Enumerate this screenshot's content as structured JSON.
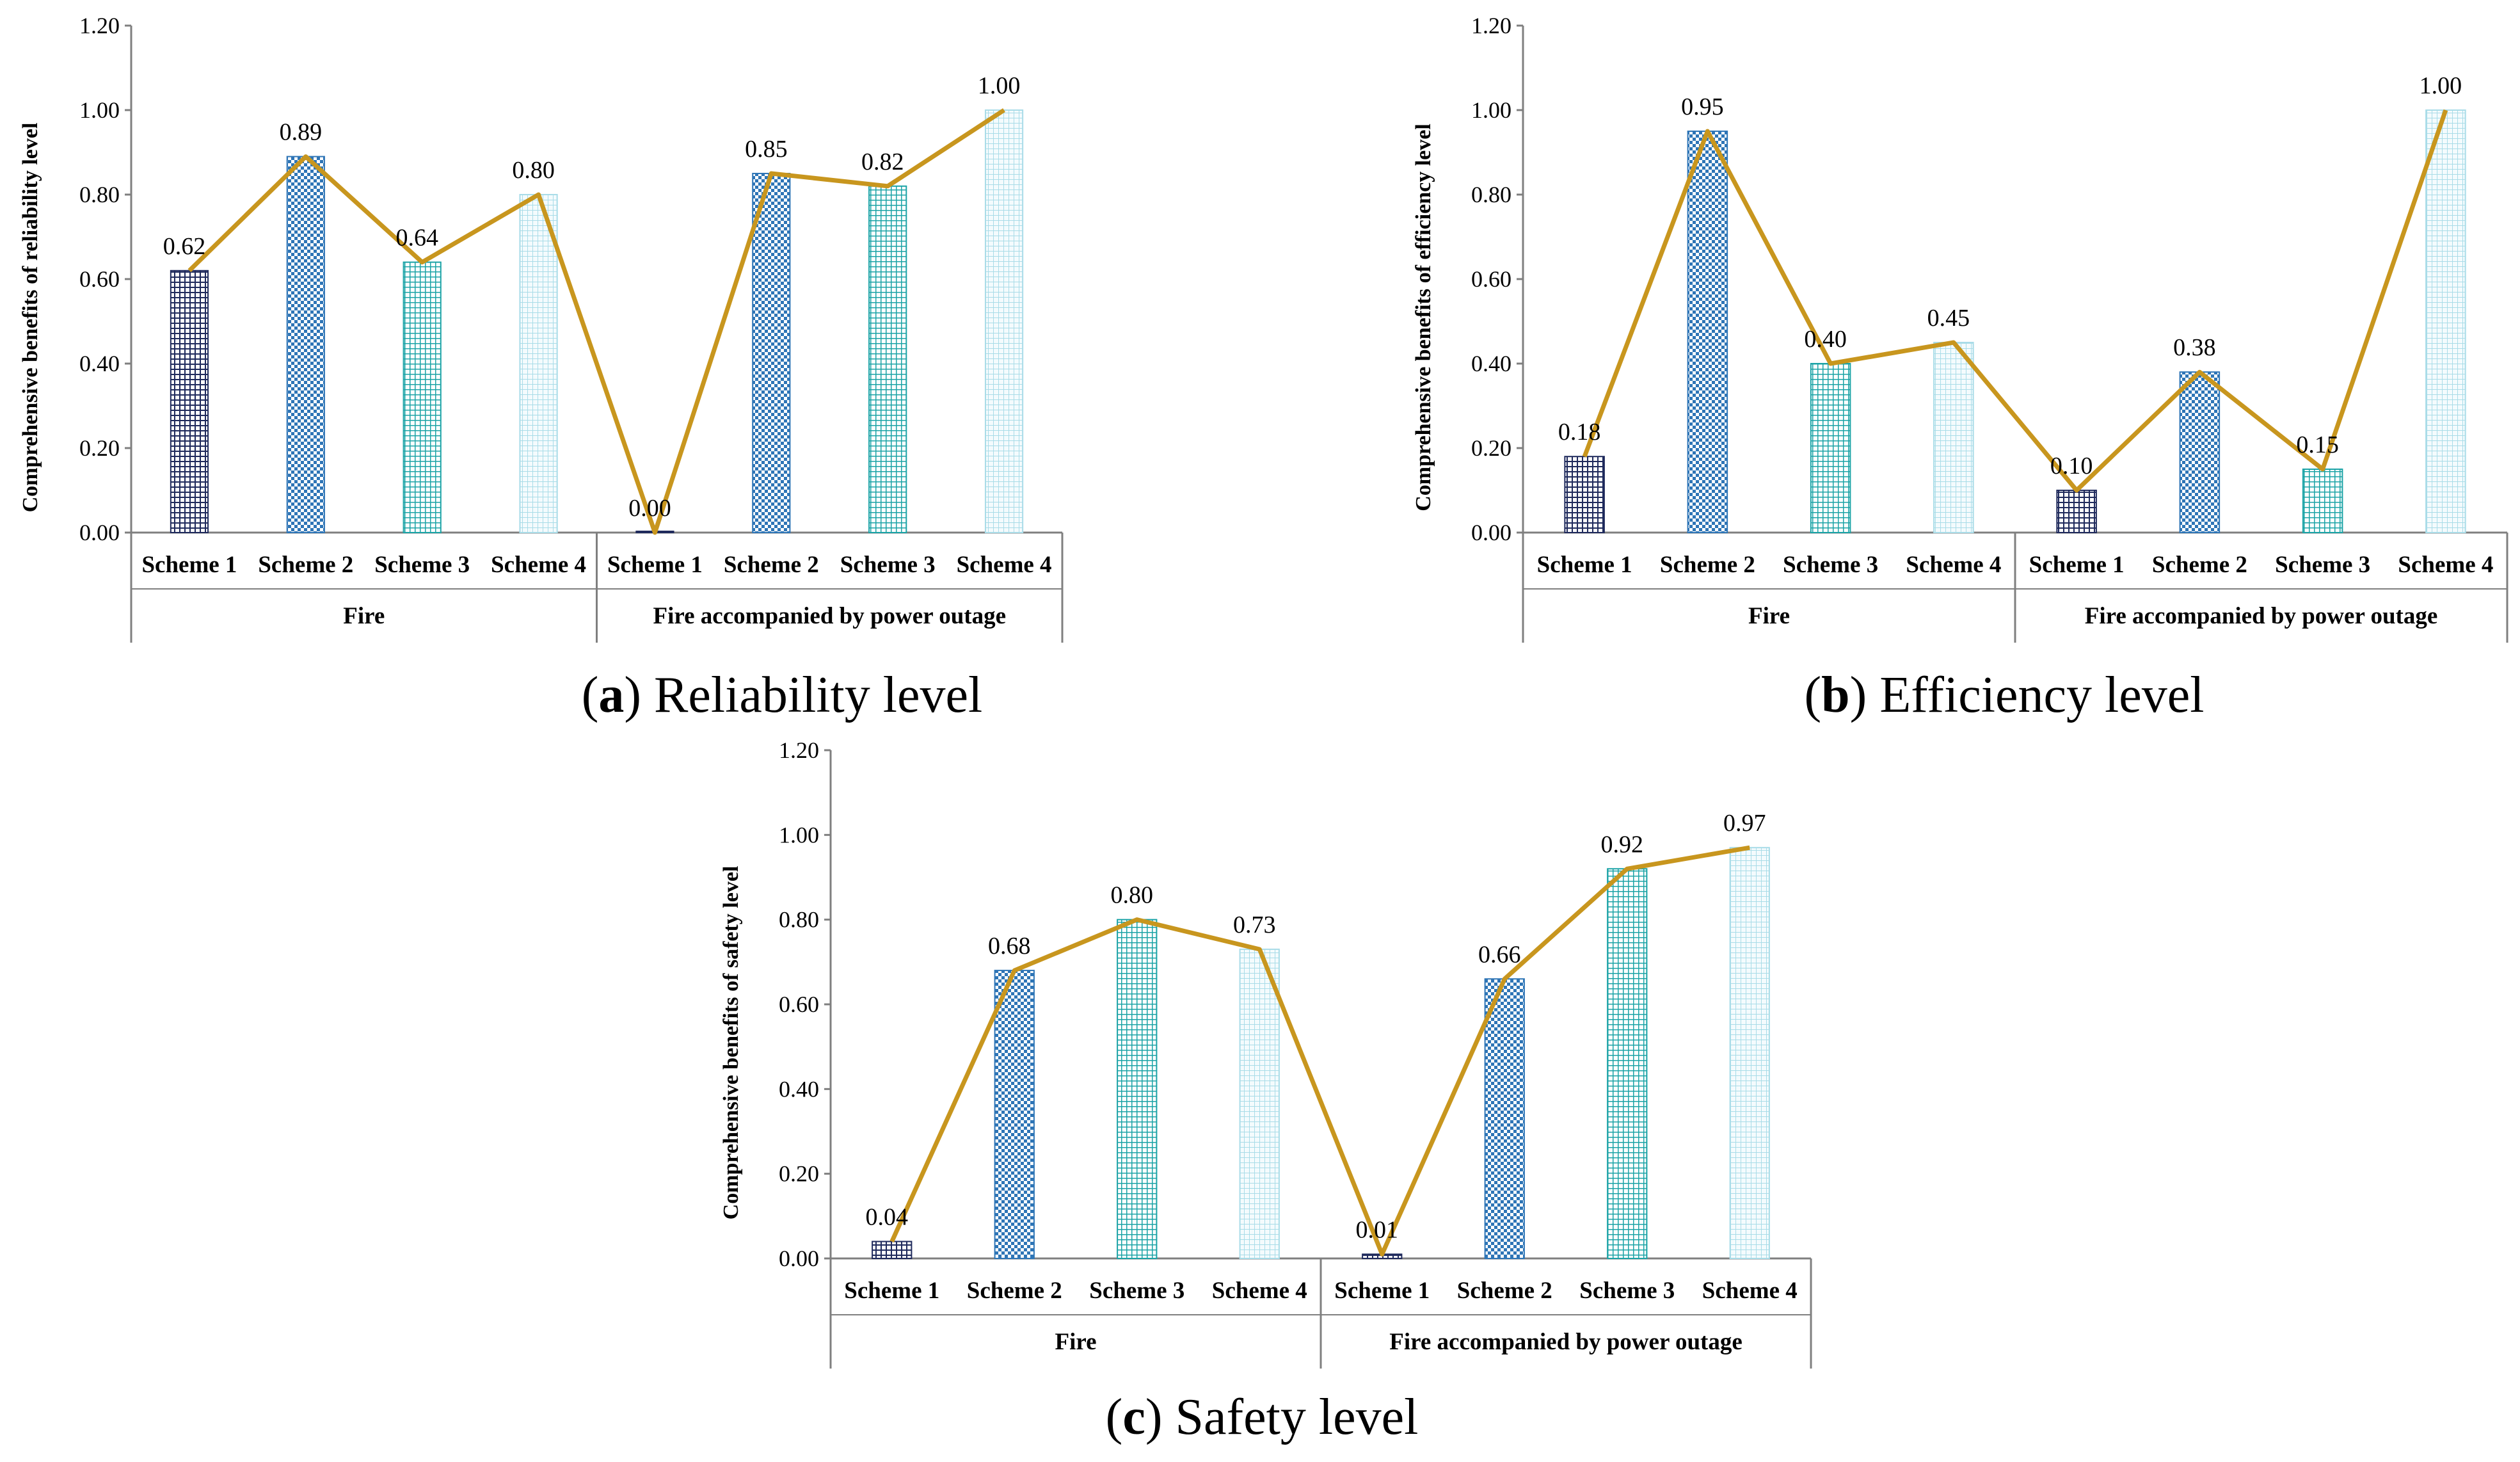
{
  "chart_data": [
    {
      "type": "bar",
      "panel": "a",
      "caption_letter": "a",
      "caption_text": "Reliability level",
      "ylabel": "Comprehensive benefits of reliability level",
      "ylim": [
        0,
        1.2
      ],
      "yticks": [
        "0.00",
        "0.20",
        "0.40",
        "0.60",
        "0.80",
        "1.00",
        "1.20"
      ],
      "groups": [
        "Fire",
        "Fire accompanied by power outage"
      ],
      "categories": [
        "Scheme 1",
        "Scheme 2",
        "Scheme 3",
        "Scheme 4",
        "Scheme 1",
        "Scheme 2",
        "Scheme 3",
        "Scheme 4"
      ],
      "values": [
        0.62,
        0.89,
        0.64,
        0.8,
        0.0,
        0.85,
        0.82,
        1.0
      ],
      "labels": [
        "0.62",
        "0.89",
        "0.64",
        "0.80",
        "0.00",
        "0.85",
        "0.82",
        "1.00"
      ],
      "line_overlay": true
    },
    {
      "type": "bar",
      "panel": "b",
      "caption_letter": "b",
      "caption_text": "Efficiency level",
      "ylabel": "Comprehensive benefits of efficiency level",
      "ylim": [
        0,
        1.2
      ],
      "yticks": [
        "0.00",
        "0.20",
        "0.40",
        "0.60",
        "0.80",
        "1.00",
        "1.20"
      ],
      "groups": [
        "Fire",
        "Fire accompanied by power outage"
      ],
      "categories": [
        "Scheme 1",
        "Scheme 2",
        "Scheme 3",
        "Scheme 4",
        "Scheme 1",
        "Scheme 2",
        "Scheme 3",
        "Scheme 4"
      ],
      "values": [
        0.18,
        0.95,
        0.4,
        0.45,
        0.1,
        0.38,
        0.15,
        1.0
      ],
      "labels": [
        "0.18",
        "0.95",
        "0.40",
        "0.45",
        "0.10",
        "0.38",
        "0.15",
        "1.00"
      ],
      "line_overlay": true
    },
    {
      "type": "bar",
      "panel": "c",
      "caption_letter": "c",
      "caption_text": "Safety level",
      "ylabel": "Comprehensive benefits of safety level",
      "ylim": [
        0,
        1.2
      ],
      "yticks": [
        "0.00",
        "0.20",
        "0.40",
        "0.60",
        "0.80",
        "1.00",
        "1.20"
      ],
      "groups": [
        "Fire",
        "Fire accompanied by power outage"
      ],
      "categories": [
        "Scheme 1",
        "Scheme 2",
        "Scheme 3",
        "Scheme 4",
        "Scheme 1",
        "Scheme 2",
        "Scheme 3",
        "Scheme 4"
      ],
      "values": [
        0.04,
        0.68,
        0.8,
        0.73,
        0.01,
        0.66,
        0.92,
        0.97
      ],
      "labels": [
        "0.04",
        "0.68",
        "0.80",
        "0.73",
        "0.01",
        "0.66",
        "0.92",
        "0.97"
      ],
      "line_overlay": true
    }
  ],
  "colors": {
    "line": "#C8961E",
    "axis": "#7F7F7F",
    "scheme1_fg": "#1F2A5C",
    "scheme2_fg": "#2E75B6",
    "scheme3_fg": "#1BA3A6",
    "scheme4_fg": "#A9DCE8"
  }
}
